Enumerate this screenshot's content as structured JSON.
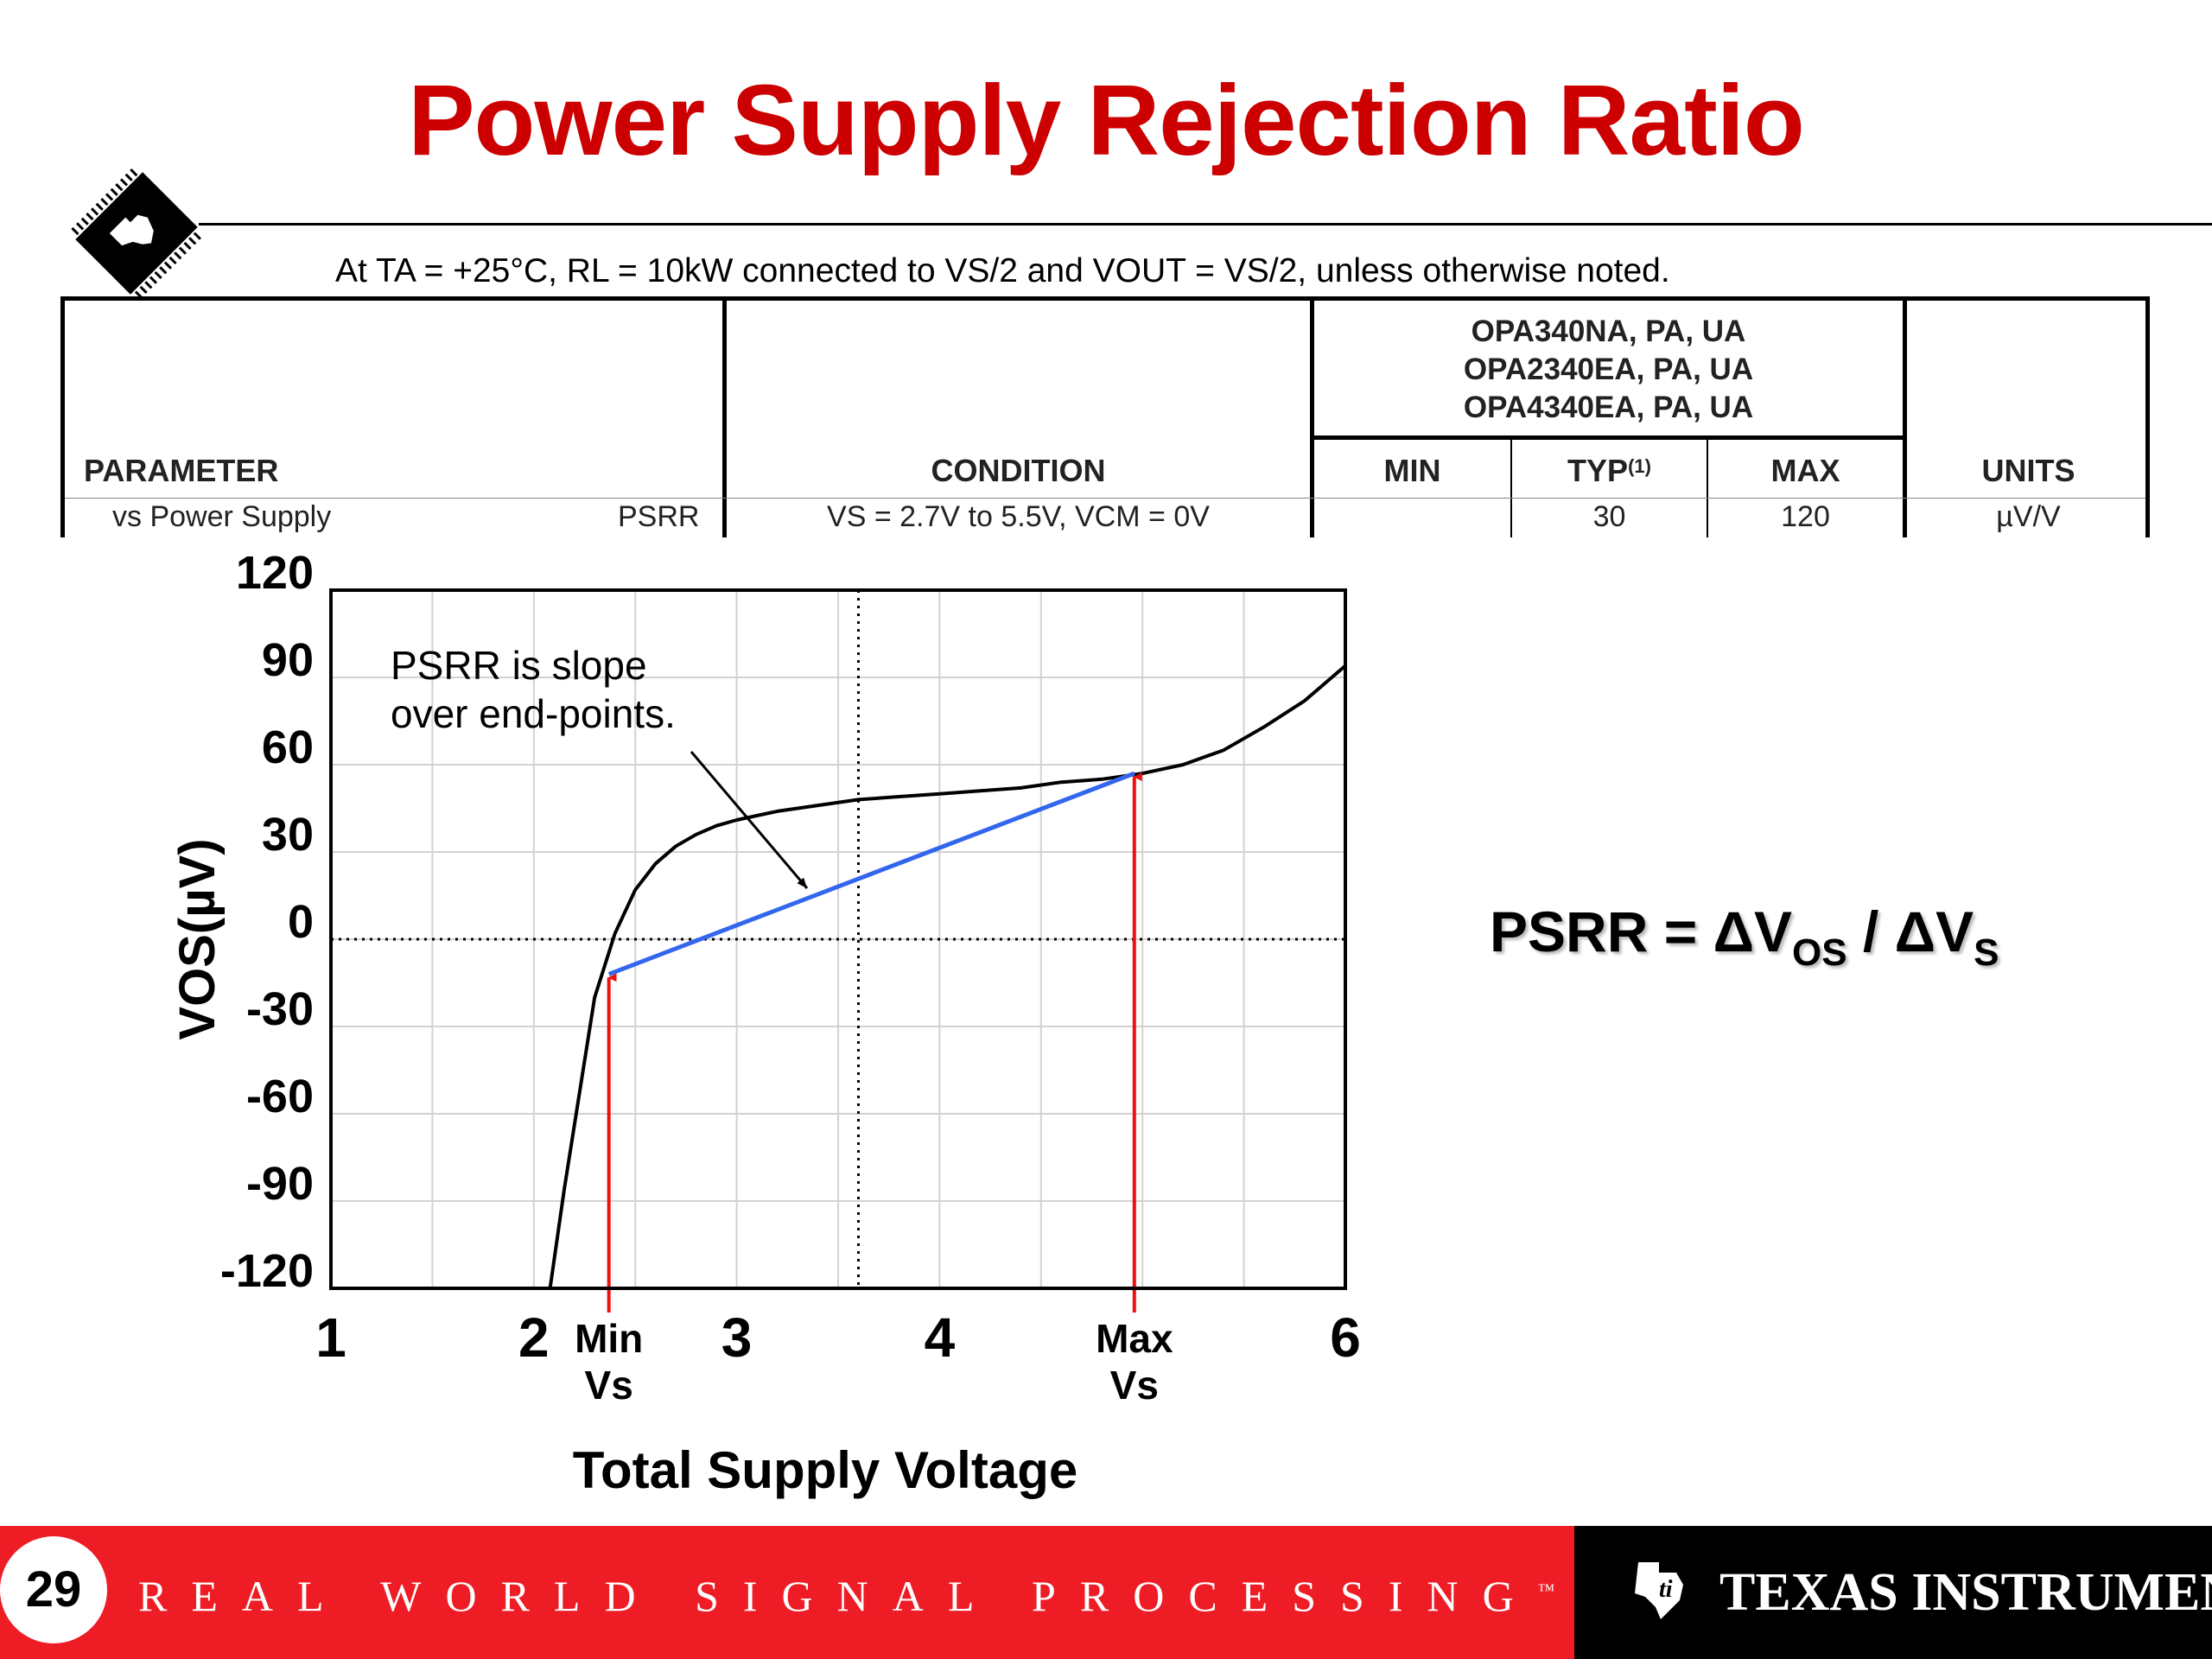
{
  "slide": {
    "title": "Power Supply Rejection Ratio",
    "conditions_note": "At TA = +25°C, RL = 10kW connected to VS/2 and VOUT = VS/2, unless otherwise noted."
  },
  "spec_table": {
    "header": {
      "parameter": "PARAMETER",
      "condition": "CONDITION",
      "part_numbers": [
        "OPA340NA, PA, UA",
        "OPA2340EA, PA, UA",
        "OPA4340EA, PA, UA"
      ],
      "min": "MIN",
      "typ": "TYP",
      "typ_note": "(1)",
      "max": "MAX",
      "units": "UNITS"
    },
    "row": {
      "parameter": "vs Power Supply",
      "symbol": "PSRR",
      "condition": "VS = 2.7V to 5.5V, VCM = 0V",
      "min": "",
      "typ": "30",
      "max": "120",
      "units": "µV/V"
    }
  },
  "chart_data": {
    "type": "line",
    "title": "",
    "xlabel": "Total Supply Voltage",
    "ylabel": "VOS(µV)",
    "xlim": [
      1,
      6
    ],
    "ylim": [
      -120,
      120
    ],
    "x_ticks": [
      "1",
      "2",
      "3",
      "4",
      "6"
    ],
    "y_ticks": [
      "120",
      "90",
      "60",
      "30",
      "0",
      "-30",
      "-60",
      "-90",
      "-120"
    ],
    "grid": true,
    "series": [
      {
        "color": "#000000",
        "x": [
          2.08,
          2.15,
          2.22,
          2.3,
          2.4,
          2.5,
          2.6,
          2.7,
          2.8,
          2.9,
          3.0,
          3.2,
          3.4,
          3.6,
          3.8,
          4.0,
          4.2,
          4.4,
          4.6,
          4.8,
          5.0,
          5.2,
          5.4,
          5.6,
          5.8,
          6.0
        ],
        "values": [
          -120,
          -86,
          -55,
          -20,
          2,
          17,
          26,
          32,
          36,
          39,
          41,
          44,
          46,
          48,
          49,
          50,
          51,
          52,
          54,
          55,
          57,
          60,
          65,
          73,
          82,
          94
        ]
      },
      {
        "color": "#3366ee",
        "x": [
          2.37,
          4.96
        ],
        "values": [
          -12,
          57
        ]
      }
    ],
    "annotations": {
      "callout": [
        "PSRR is slope",
        "over end-points."
      ],
      "min_marker": {
        "x": 2.37,
        "y": -12,
        "label": [
          "Min",
          "Vs"
        ]
      },
      "max_marker": {
        "x": 4.96,
        "y": 57,
        "label": [
          "Max",
          "Vs"
        ]
      },
      "dotted_lines": {
        "x": 3.6,
        "y": 0
      }
    }
  },
  "formula": {
    "lhs": "PSRR = ΔV",
    "sub1": "OS",
    "mid": " / ΔV",
    "sub2": "S"
  },
  "footer": {
    "page_number": "29",
    "tagline": "REAL WORLD SIGNAL PROCESSING",
    "tagline_tm": "™",
    "brand": "TEXAS INSTRUMENTS",
    "colors": {
      "red": "#ee1c25",
      "black": "#000000"
    }
  }
}
